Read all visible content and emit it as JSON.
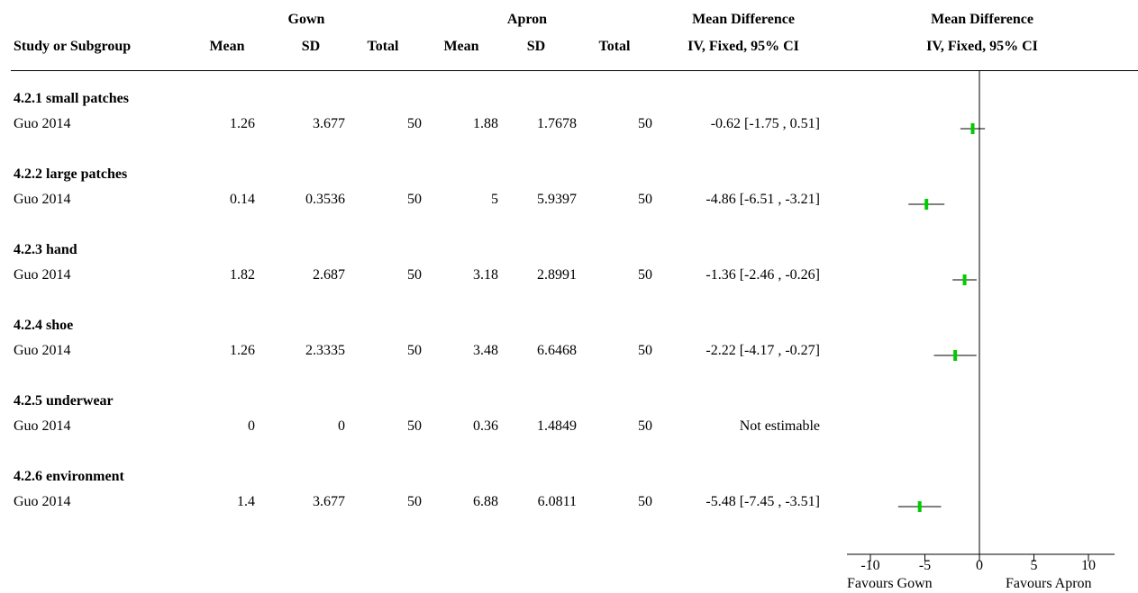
{
  "header": {
    "group1": "Gown",
    "group2": "Apron",
    "study_col": "Study or Subgroup",
    "mean_label": "Mean",
    "sd_label": "SD",
    "total_label": "Total",
    "md_title": "Mean Difference",
    "md_method": "IV, Fixed, 95% CI",
    "plot_title": "Mean Difference",
    "plot_method": "IV, Fixed, 95% CI"
  },
  "rows": [
    {
      "subgroup": "4.2.1 small patches",
      "study": "Guo 2014",
      "gown_mean": "1.26",
      "gown_sd": "3.677",
      "gown_total": "50",
      "apron_mean": "1.88",
      "apron_sd": "1.7678",
      "apron_total": "50",
      "ci_text": "-0.62 [-1.75 , 0.51]"
    },
    {
      "subgroup": "4.2.2 large patches",
      "study": "Guo 2014",
      "gown_mean": "0.14",
      "gown_sd": "0.3536",
      "gown_total": "50",
      "apron_mean": "5",
      "apron_sd": "5.9397",
      "apron_total": "50",
      "ci_text": "-4.86 [-6.51 , -3.21]"
    },
    {
      "subgroup": "4.2.3 hand",
      "study": "Guo 2014",
      "gown_mean": "1.82",
      "gown_sd": "2.687",
      "gown_total": "50",
      "apron_mean": "3.18",
      "apron_sd": "2.8991",
      "apron_total": "50",
      "ci_text": "-1.36 [-2.46 , -0.26]"
    },
    {
      "subgroup": "4.2.4 shoe",
      "study": "Guo 2014",
      "gown_mean": "1.26",
      "gown_sd": "2.3335",
      "gown_total": "50",
      "apron_mean": "3.48",
      "apron_sd": "6.6468",
      "apron_total": "50",
      "ci_text": "-2.22 [-4.17 , -0.27]"
    },
    {
      "subgroup": "4.2.5 underwear",
      "study": "Guo 2014",
      "gown_mean": "0",
      "gown_sd": "0",
      "gown_total": "50",
      "apron_mean": "0.36",
      "apron_sd": "1.4849",
      "apron_total": "50",
      "ci_text": "Not estimable"
    },
    {
      "subgroup": "4.2.6 environment",
      "study": "Guo 2014",
      "gown_mean": "1.4",
      "gown_sd": "3.677",
      "gown_total": "50",
      "apron_mean": "6.88",
      "apron_sd": "6.0811",
      "apron_total": "50",
      "ci_text": "-5.48 [-7.45 , -3.51]"
    }
  ],
  "chart_data": {
    "type": "forest",
    "xlim": [
      -10,
      10
    ],
    "ticks": [
      -10,
      -5,
      0,
      5,
      10
    ],
    "tick_labels": [
      "-10",
      "-5",
      "0",
      "5",
      "10"
    ],
    "favours_left": "Favours Gown",
    "favours_right": "Favours Apron",
    "marker_color": "#00cc00",
    "estimates": [
      {
        "md": -0.62,
        "lo": -1.75,
        "hi": 0.51
      },
      {
        "md": -4.86,
        "lo": -6.51,
        "hi": -3.21
      },
      {
        "md": -1.36,
        "lo": -2.46,
        "hi": -0.26
      },
      {
        "md": -2.22,
        "lo": -4.17,
        "hi": -0.27
      },
      null,
      {
        "md": -5.48,
        "lo": -7.45,
        "hi": -3.51
      }
    ]
  }
}
